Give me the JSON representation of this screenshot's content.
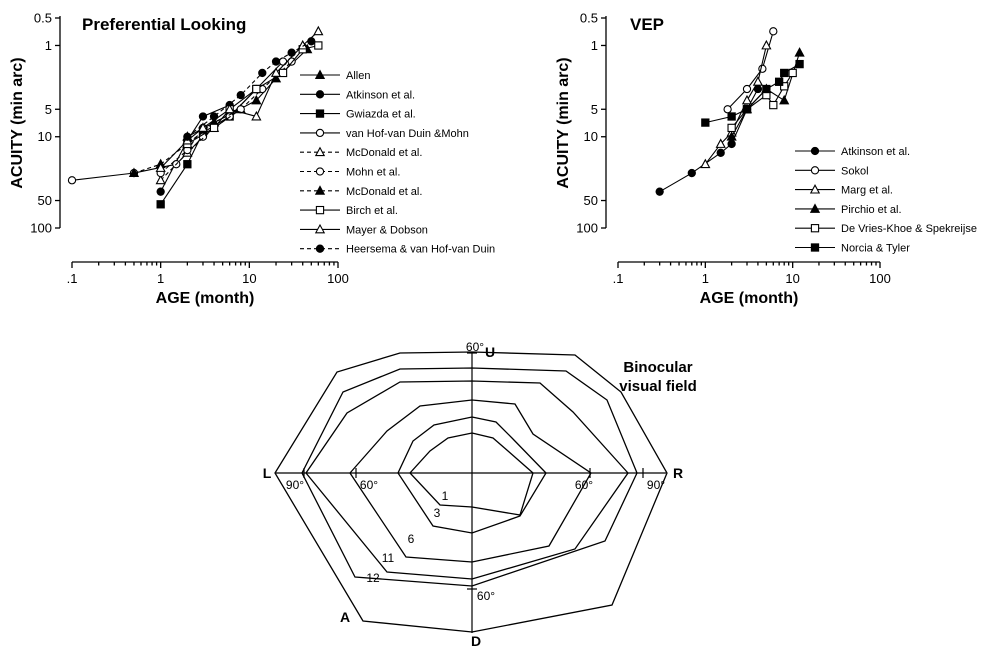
{
  "chart_data": [
    {
      "type": "line",
      "title": "Preferential Looking",
      "xlabel": "AGE (month)",
      "ylabel": "ACUITY (min arc)",
      "xscale": "log",
      "yscale": "log",
      "y_inverted": true,
      "xlim": [
        0.1,
        100
      ],
      "ylim": [
        0.5,
        100
      ],
      "xticks": [
        ".1",
        "1",
        "10",
        "100"
      ],
      "yticks": [
        "0.5",
        "1",
        "5",
        "10",
        "50",
        "100"
      ],
      "legend_position": "right",
      "series": [
        {
          "name": "Allen",
          "marker": "triangle-filled",
          "dash": "solid",
          "points": [
            [
              2,
              10
            ],
            [
              4,
              7
            ],
            [
              12,
              4
            ],
            [
              20,
              2.3
            ],
            [
              45,
              1.1
            ]
          ]
        },
        {
          "name": "Atkinson et al.",
          "marker": "circle-filled",
          "dash": "solid",
          "points": [
            [
              1,
              40
            ],
            [
              2,
              11
            ],
            [
              3,
              6
            ],
            [
              6,
              4.5
            ]
          ]
        },
        {
          "name": "Gwiazda et al.",
          "marker": "square-filled",
          "dash": "solid",
          "points": [
            [
              1,
              55
            ],
            [
              2,
              20
            ],
            [
              3,
              9
            ],
            [
              6,
              6
            ],
            [
              12,
              3
            ]
          ]
        },
        {
          "name": "van Hof-van Duin &Mohn",
          "marker": "circle-open",
          "dash": "solid",
          "points": [
            [
              0.1,
              30
            ],
            [
              0.5,
              25
            ],
            [
              1.5,
              20
            ],
            [
              3,
              10
            ],
            [
              6,
              6
            ],
            [
              12,
              3
            ],
            [
              24,
              1.5
            ]
          ]
        },
        {
          "name": "McDonald et al.",
          "marker": "triangle-open",
          "dash": "dashed",
          "points": [
            [
              1,
              30
            ],
            [
              2,
              15
            ],
            [
              4,
              8
            ],
            [
              8,
              5
            ]
          ]
        },
        {
          "name": "Mohn et al.",
          "marker": "circle-open",
          "dash": "dashed",
          "points": [
            [
              1,
              25
            ],
            [
              2,
              14
            ],
            [
              3,
              8
            ],
            [
              8,
              5
            ],
            [
              14,
              3
            ],
            [
              30,
              1.5
            ]
          ]
        },
        {
          "name": "McDonald et al.",
          "marker": "triangle-filled",
          "dash": "dashed",
          "points": [
            [
              0.5,
              25
            ],
            [
              1,
              20
            ],
            [
              2,
              12
            ],
            [
              4,
              7
            ]
          ]
        },
        {
          "name": "Birch et al.",
          "marker": "square-open",
          "dash": "solid",
          "points": [
            [
              2,
              12
            ],
            [
              4,
              8
            ],
            [
              6,
              5
            ],
            [
              12,
              3
            ],
            [
              24,
              2
            ],
            [
              40,
              1.1
            ],
            [
              60,
              1
            ]
          ]
        },
        {
          "name": "Mayer & Dobson",
          "marker": "triangle-open",
          "dash": "solid",
          "points": [
            [
              1,
              22
            ],
            [
              2,
              11
            ],
            [
              3,
              8
            ],
            [
              6,
              5
            ],
            [
              12,
              6
            ],
            [
              20,
              2
            ],
            [
              40,
              1
            ],
            [
              60,
              0.7
            ]
          ]
        },
        {
          "name": "Heersema & van Hof-van Duin",
          "marker": "circle-filled",
          "dash": "dashed",
          "points": [
            [
              2,
              10
            ],
            [
              4,
              6
            ],
            [
              8,
              3.5
            ],
            [
              14,
              2
            ],
            [
              20,
              1.5
            ],
            [
              30,
              1.2
            ],
            [
              50,
              0.9
            ]
          ]
        }
      ]
    },
    {
      "type": "line",
      "title": "VEP",
      "xlabel": "AGE (month)",
      "ylabel": "ACUITY (min arc)",
      "xscale": "log",
      "yscale": "log",
      "y_inverted": true,
      "xlim": [
        0.1,
        100
      ],
      "ylim": [
        0.5,
        100
      ],
      "xticks": [
        ".1",
        "1",
        "10",
        "100"
      ],
      "yticks": [
        "0.5",
        "1",
        "5",
        "10",
        "50",
        "100"
      ],
      "legend_position": "bottom-right",
      "series": [
        {
          "name": "Atkinson et al.",
          "marker": "circle-filled",
          "dash": "solid",
          "points": [
            [
              0.3,
              40
            ],
            [
              0.7,
              25
            ],
            [
              1.5,
              15
            ],
            [
              2,
              12
            ],
            [
              3,
              5
            ],
            [
              4,
              3
            ]
          ]
        },
        {
          "name": "Sokol",
          "marker": "circle-open",
          "dash": "solid",
          "points": [
            [
              1.8,
              5
            ],
            [
              3,
              3
            ],
            [
              4.5,
              1.8
            ],
            [
              6,
              0.7
            ]
          ]
        },
        {
          "name": "Marg et al.",
          "marker": "triangle-open",
          "dash": "solid",
          "points": [
            [
              1,
              20
            ],
            [
              1.5,
              12
            ],
            [
              2,
              9
            ],
            [
              3,
              4
            ],
            [
              4,
              2.5
            ],
            [
              5,
              1
            ]
          ]
        },
        {
          "name": "Pirchio et al.",
          "marker": "triangle-filled",
          "dash": "solid",
          "points": [
            [
              2,
              10
            ],
            [
              3,
              5
            ],
            [
              5,
              3
            ],
            [
              8,
              4
            ],
            [
              12,
              1.2
            ]
          ]
        },
        {
          "name": "De Vries-Khoe & Spekreijse",
          "marker": "square-open",
          "dash": "solid",
          "points": [
            [
              2,
              8
            ],
            [
              3,
              5
            ],
            [
              5,
              3.5
            ],
            [
              6,
              4.5
            ],
            [
              8,
              2.8
            ],
            [
              10,
              2
            ]
          ]
        },
        {
          "name": "Norcia & Tyler",
          "marker": "square-filled",
          "dash": "solid",
          "points": [
            [
              1,
              7
            ],
            [
              2,
              6
            ],
            [
              3,
              5
            ],
            [
              5,
              3
            ],
            [
              7,
              2.5
            ],
            [
              8,
              2
            ],
            [
              12,
              1.6
            ]
          ]
        }
      ]
    },
    {
      "type": "radar",
      "title": "Binocular\nvisual field",
      "axes": [
        "U",
        "R",
        "D",
        "L"
      ],
      "diagonals": [
        "A"
      ],
      "scale_labels": {
        "top": "60°",
        "right_inner": "60°",
        "right_outer": "90°",
        "left_inner": "60°",
        "left_outer": "90°",
        "bottom": "60°"
      },
      "contour_labels": [
        "1",
        "3",
        "6",
        "11",
        "12"
      ]
    }
  ]
}
